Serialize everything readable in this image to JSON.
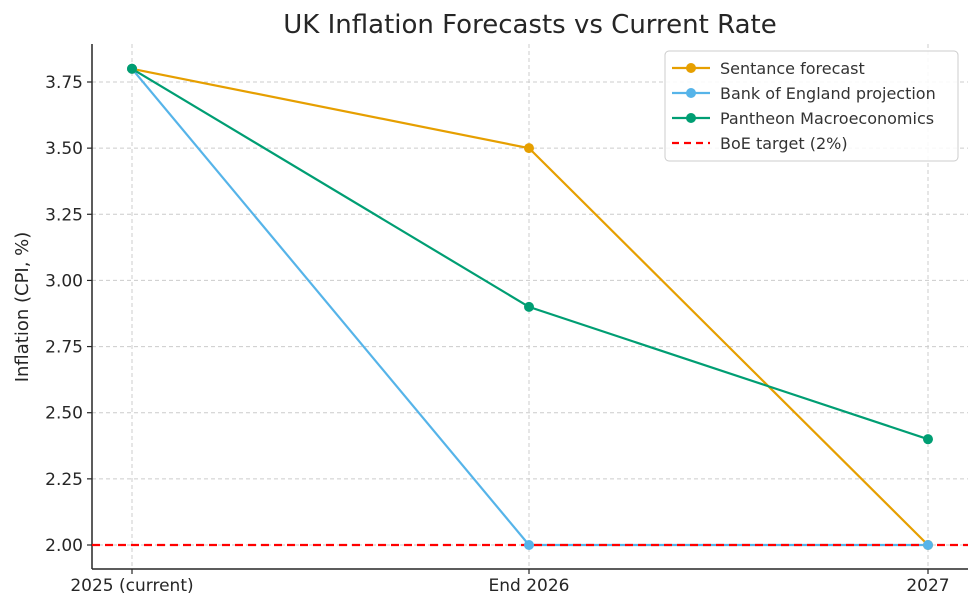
{
  "chart_data": {
    "type": "line",
    "title": "UK Inflation Forecasts vs Current Rate",
    "xlabel": "",
    "ylabel": "Inflation (CPI, %)",
    "categories": [
      "2025 (current)",
      "End 2026",
      "2027"
    ],
    "ylim": [
      1.91,
      3.89
    ],
    "yticks": [
      "2.00",
      "2.25",
      "2.50",
      "2.75",
      "3.00",
      "3.25",
      "3.50",
      "3.75"
    ],
    "grid": true,
    "legend_position": "top-right",
    "series": [
      {
        "name": "Sentance forecast",
        "values": [
          3.8,
          3.5,
          2.0
        ],
        "color": "#E69F00",
        "style": "solid",
        "marker": "circle"
      },
      {
        "name": "Bank of England projection",
        "values": [
          3.8,
          2.0,
          2.0
        ],
        "color": "#56B4E9",
        "style": "solid",
        "marker": "circle"
      },
      {
        "name": "Pantheon Macroeconomics",
        "values": [
          3.8,
          2.9,
          2.4
        ],
        "color": "#009E73",
        "style": "solid",
        "marker": "circle"
      }
    ],
    "reference_lines": [
      {
        "name": "BoE target (2%)",
        "value": 2.0,
        "color": "#FF0000",
        "style": "dashed"
      }
    ]
  }
}
